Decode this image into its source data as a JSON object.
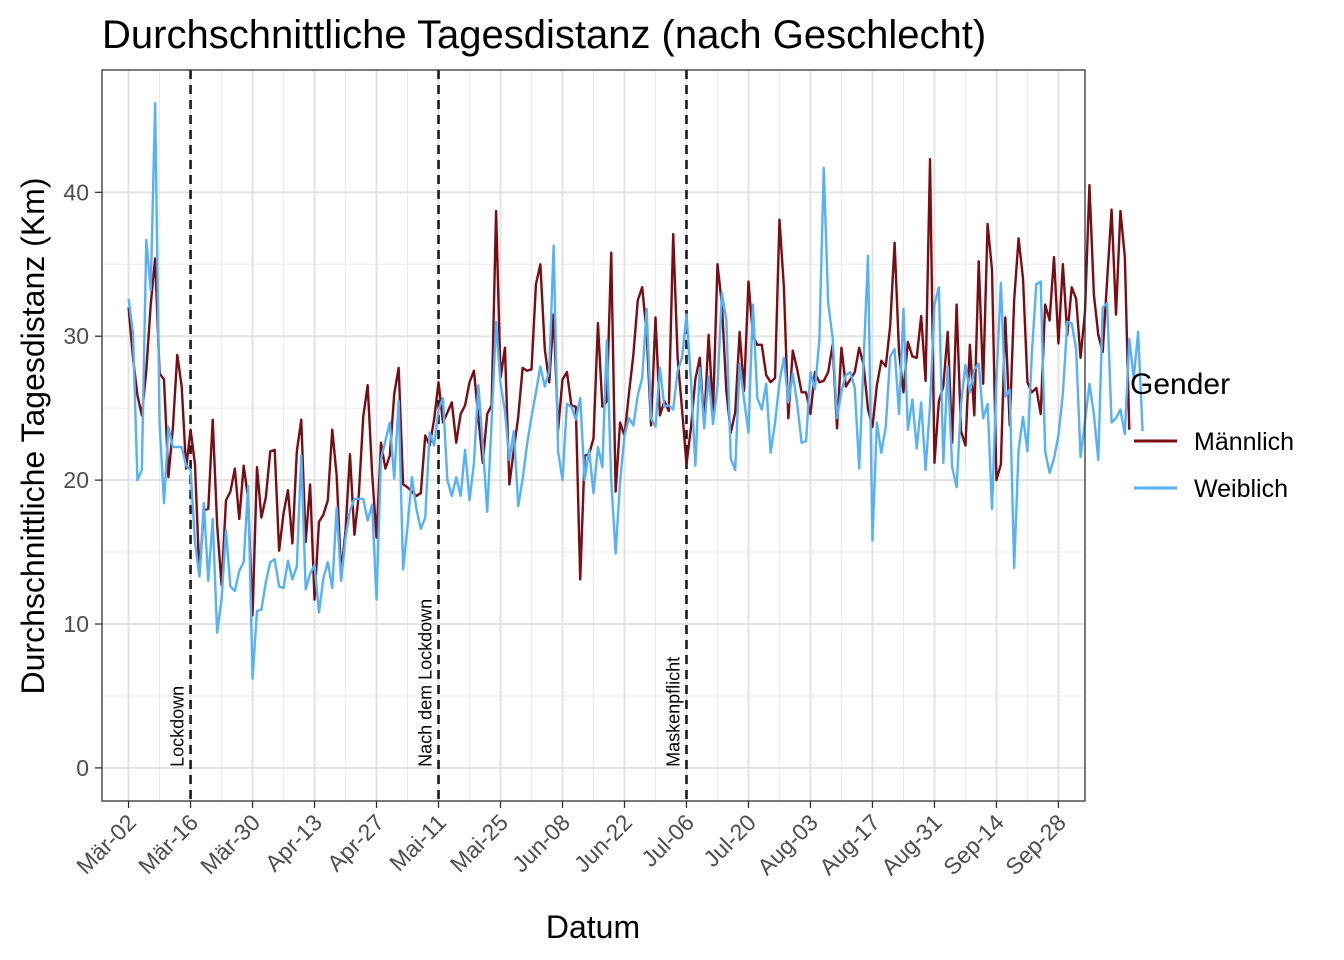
{
  "chart_data": {
    "type": "line",
    "title": "Durchschnittliche Tagesdistanz (nach Geschlecht)",
    "xlabel": "Datum",
    "ylabel": "Durchschnittliche Tagesdistanz (Km)",
    "x_start": "2020-03-02",
    "x_interval_days": 1,
    "xlim": [
      "2020-02-25",
      "2020-10-04"
    ],
    "ylim": [
      -2.3,
      48.5
    ],
    "y_ticks": [
      0,
      10,
      20,
      30,
      40
    ],
    "y_tick_labels": [
      "0",
      "10",
      "20",
      "30",
      "40"
    ],
    "x_ticks": [
      "2020-03-02",
      "2020-03-16",
      "2020-03-30",
      "2020-04-13",
      "2020-04-27",
      "2020-05-11",
      "2020-05-25",
      "2020-06-08",
      "2020-06-22",
      "2020-07-06",
      "2020-07-20",
      "2020-08-03",
      "2020-08-17",
      "2020-08-31",
      "2020-09-14",
      "2020-09-28"
    ],
    "x_tick_labels": [
      "Mär-02",
      "Mär-16",
      "Mär-30",
      "Apr-13",
      "Apr-27",
      "Mai-11",
      "Mai-25",
      "Jun-08",
      "Jun-22",
      "Jul-06",
      "Jul-20",
      "Aug-03",
      "Aug-17",
      "Aug-31",
      "Sep-14",
      "Sep-28"
    ],
    "grid": true,
    "legend": {
      "title": "Gender",
      "position": "right"
    },
    "events": [
      {
        "date": "2020-03-16",
        "label": "Lockdown"
      },
      {
        "date": "2020-05-11",
        "label": "Nach dem Lockdown"
      },
      {
        "date": "2020-07-06",
        "label": "Maskenpflicht"
      }
    ],
    "series": [
      {
        "name": "Männlich",
        "color": "#7a0c14",
        "values": [
          32.0,
          28.5,
          25.9,
          24.5,
          27.6,
          32.2,
          35.4,
          27.4,
          27.0,
          20.2,
          23.6,
          28.7,
          26.5,
          20.8,
          23.5,
          21.1,
          13.4,
          17.9,
          18.0,
          24.2,
          16.9,
          12.7,
          18.6,
          19.2,
          20.8,
          17.3,
          21.0,
          18.7,
          10.6,
          20.9,
          17.4,
          18.8,
          22.0,
          22.1,
          15.1,
          17.7,
          19.3,
          15.6,
          22.0,
          24.2,
          15.7,
          19.7,
          11.7,
          17.1,
          17.6,
          18.6,
          23.5,
          20.3,
          13.5,
          16.5,
          21.8,
          16.2,
          19.0,
          24.4,
          26.6,
          20.5,
          16.0,
          22.6,
          20.8,
          21.7,
          26.0,
          27.8,
          19.7,
          19.5,
          19.2,
          18.9,
          19.1,
          23.1,
          22.4,
          24.2,
          26.8,
          24.0,
          24.7,
          25.4,
          22.6,
          24.6,
          25.2,
          26.8,
          27.6,
          24.3,
          21.2,
          24.6,
          25.2,
          38.7,
          27.1,
          29.2,
          19.7,
          22.1,
          24.4,
          27.8,
          27.6,
          27.7,
          33.6,
          35.0,
          29.1,
          26.8,
          31.5,
          23.5,
          27.0,
          27.5,
          25.2,
          25.1,
          13.1,
          21.7,
          21.8,
          22.9,
          30.9,
          25.1,
          25.5,
          35.8,
          19.2,
          24.0,
          23.1,
          26.0,
          28.7,
          32.5,
          33.4,
          30.2,
          23.8,
          31.3,
          24.5,
          25.5,
          24.8,
          37.1,
          28.5,
          24.9,
          21.1,
          23.6,
          27.0,
          28.5,
          23.9,
          30.1,
          24.8,
          35.0,
          32.2,
          26.2,
          23.3,
          24.7,
          30.3,
          26.2,
          33.8,
          30.0,
          29.4,
          29.4,
          27.3,
          26.8,
          27.1,
          38.1,
          33.4,
          24.3,
          29.0,
          27.7,
          26.1,
          26.1,
          24.6,
          27.5,
          26.8,
          26.9,
          27.5,
          29.4,
          23.6,
          29.2,
          26.5,
          27.0,
          27.5,
          29.2,
          28.0,
          24.9,
          23.7,
          26.6,
          28.3,
          27.9,
          30.7,
          36.5,
          28.9,
          26.1,
          29.6,
          28.6,
          28.5,
          31.4,
          26.9,
          42.3,
          21.2,
          25.5,
          26.5,
          30.3,
          22.6,
          32.2,
          23.4,
          22.4,
          29.4,
          24.5,
          35.2,
          26.7,
          37.8,
          34.6,
          20.0,
          21.1,
          31.3,
          23.8,
          32.5,
          36.8,
          34.0,
          26.8,
          26.1,
          26.4,
          24.6,
          32.2,
          31.1,
          35.5,
          29.5,
          35.0,
          30.1,
          33.4,
          32.6,
          28.5,
          31.7,
          40.5,
          32.9,
          30.1,
          28.9,
          33.9,
          38.8,
          31.5,
          38.7,
          35.5,
          23.5
        ]
      },
      {
        "name": "Weiblich",
        "color": "#56b1f7",
        "values": [
          32.6,
          30.2,
          20.0,
          20.7,
          36.7,
          33.2,
          46.2,
          24.0,
          18.4,
          23.7,
          22.3,
          22.3,
          22.3,
          21.0,
          20.7,
          15.7,
          13.3,
          18.4,
          13.0,
          17.3,
          9.4,
          11.7,
          16.5,
          12.6,
          12.3,
          13.7,
          14.3,
          19.6,
          6.2,
          10.9,
          11.0,
          12.9,
          14.3,
          14.5,
          12.6,
          12.5,
          14.4,
          13.1,
          14.0,
          21.7,
          12.4,
          13.5,
          14.1,
          10.8,
          13.2,
          14.3,
          12.5,
          18.1,
          13.0,
          16.0,
          17.9,
          18.7,
          18.7,
          18.7,
          17.2,
          18.3,
          11.7,
          21.5,
          22.7,
          24.0,
          20.1,
          25.5,
          13.8,
          16.8,
          20.2,
          18.0,
          16.6,
          17.4,
          23.3,
          22.4,
          24.9,
          25.7,
          20.0,
          18.9,
          20.2,
          18.9,
          22.1,
          18.6,
          21.2,
          26.6,
          22.4,
          17.8,
          24.1,
          31.0,
          26.7,
          24.8,
          21.4,
          23.4,
          18.2,
          20.1,
          22.5,
          24.4,
          26.1,
          27.9,
          26.5,
          27.6,
          36.3,
          22.0,
          20.0,
          25.3,
          25.1,
          24.2,
          25.7,
          20.0,
          22.1,
          19.1,
          22.3,
          20.9,
          29.7,
          20.0,
          14.9,
          19.9,
          23.1,
          24.3,
          23.8,
          25.9,
          27.1,
          31.9,
          24.3,
          23.7,
          27.8,
          25.1,
          25.2,
          24.9,
          27.6,
          28.5,
          31.5,
          27.0,
          21.0,
          27.8,
          23.6,
          27.2,
          23.9,
          26.5,
          33.0,
          31.1,
          21.5,
          20.7,
          28.1,
          25.6,
          23.3,
          32.2,
          25.7,
          24.9,
          26.7,
          21.9,
          24.0,
          26.8,
          28.5,
          25.4,
          27.4,
          25.3,
          22.6,
          22.7,
          27.5,
          26.3,
          29.7,
          41.7,
          32.3,
          29.9,
          24.3,
          26.2,
          27.3,
          27.5,
          26.4,
          20.8,
          28.3,
          35.6,
          15.8,
          24.0,
          21.9,
          23.7,
          28.6,
          29.1,
          24.6,
          31.9,
          23.5,
          25.6,
          22.2,
          25.4,
          20.7,
          25.2,
          32.2,
          33.4,
          21.2,
          27.9,
          20.9,
          19.5,
          25.3,
          28.0,
          26.1,
          27.7,
          28.1,
          24.3,
          25.3,
          18.0,
          26.9,
          33.7,
          25.8,
          26.3,
          13.9,
          22.1,
          24.4,
          22.0,
          28.8,
          33.6,
          33.8,
          22.0,
          20.5,
          21.5,
          23.1,
          26.0,
          31.0,
          30.9,
          29.1,
          21.6,
          24.1,
          26.7,
          24.6,
          21.4,
          32.0,
          32.3,
          24.0,
          24.3,
          24.9,
          23.2,
          29.8,
          27.1,
          30.3,
          23.4
        ]
      }
    ]
  }
}
